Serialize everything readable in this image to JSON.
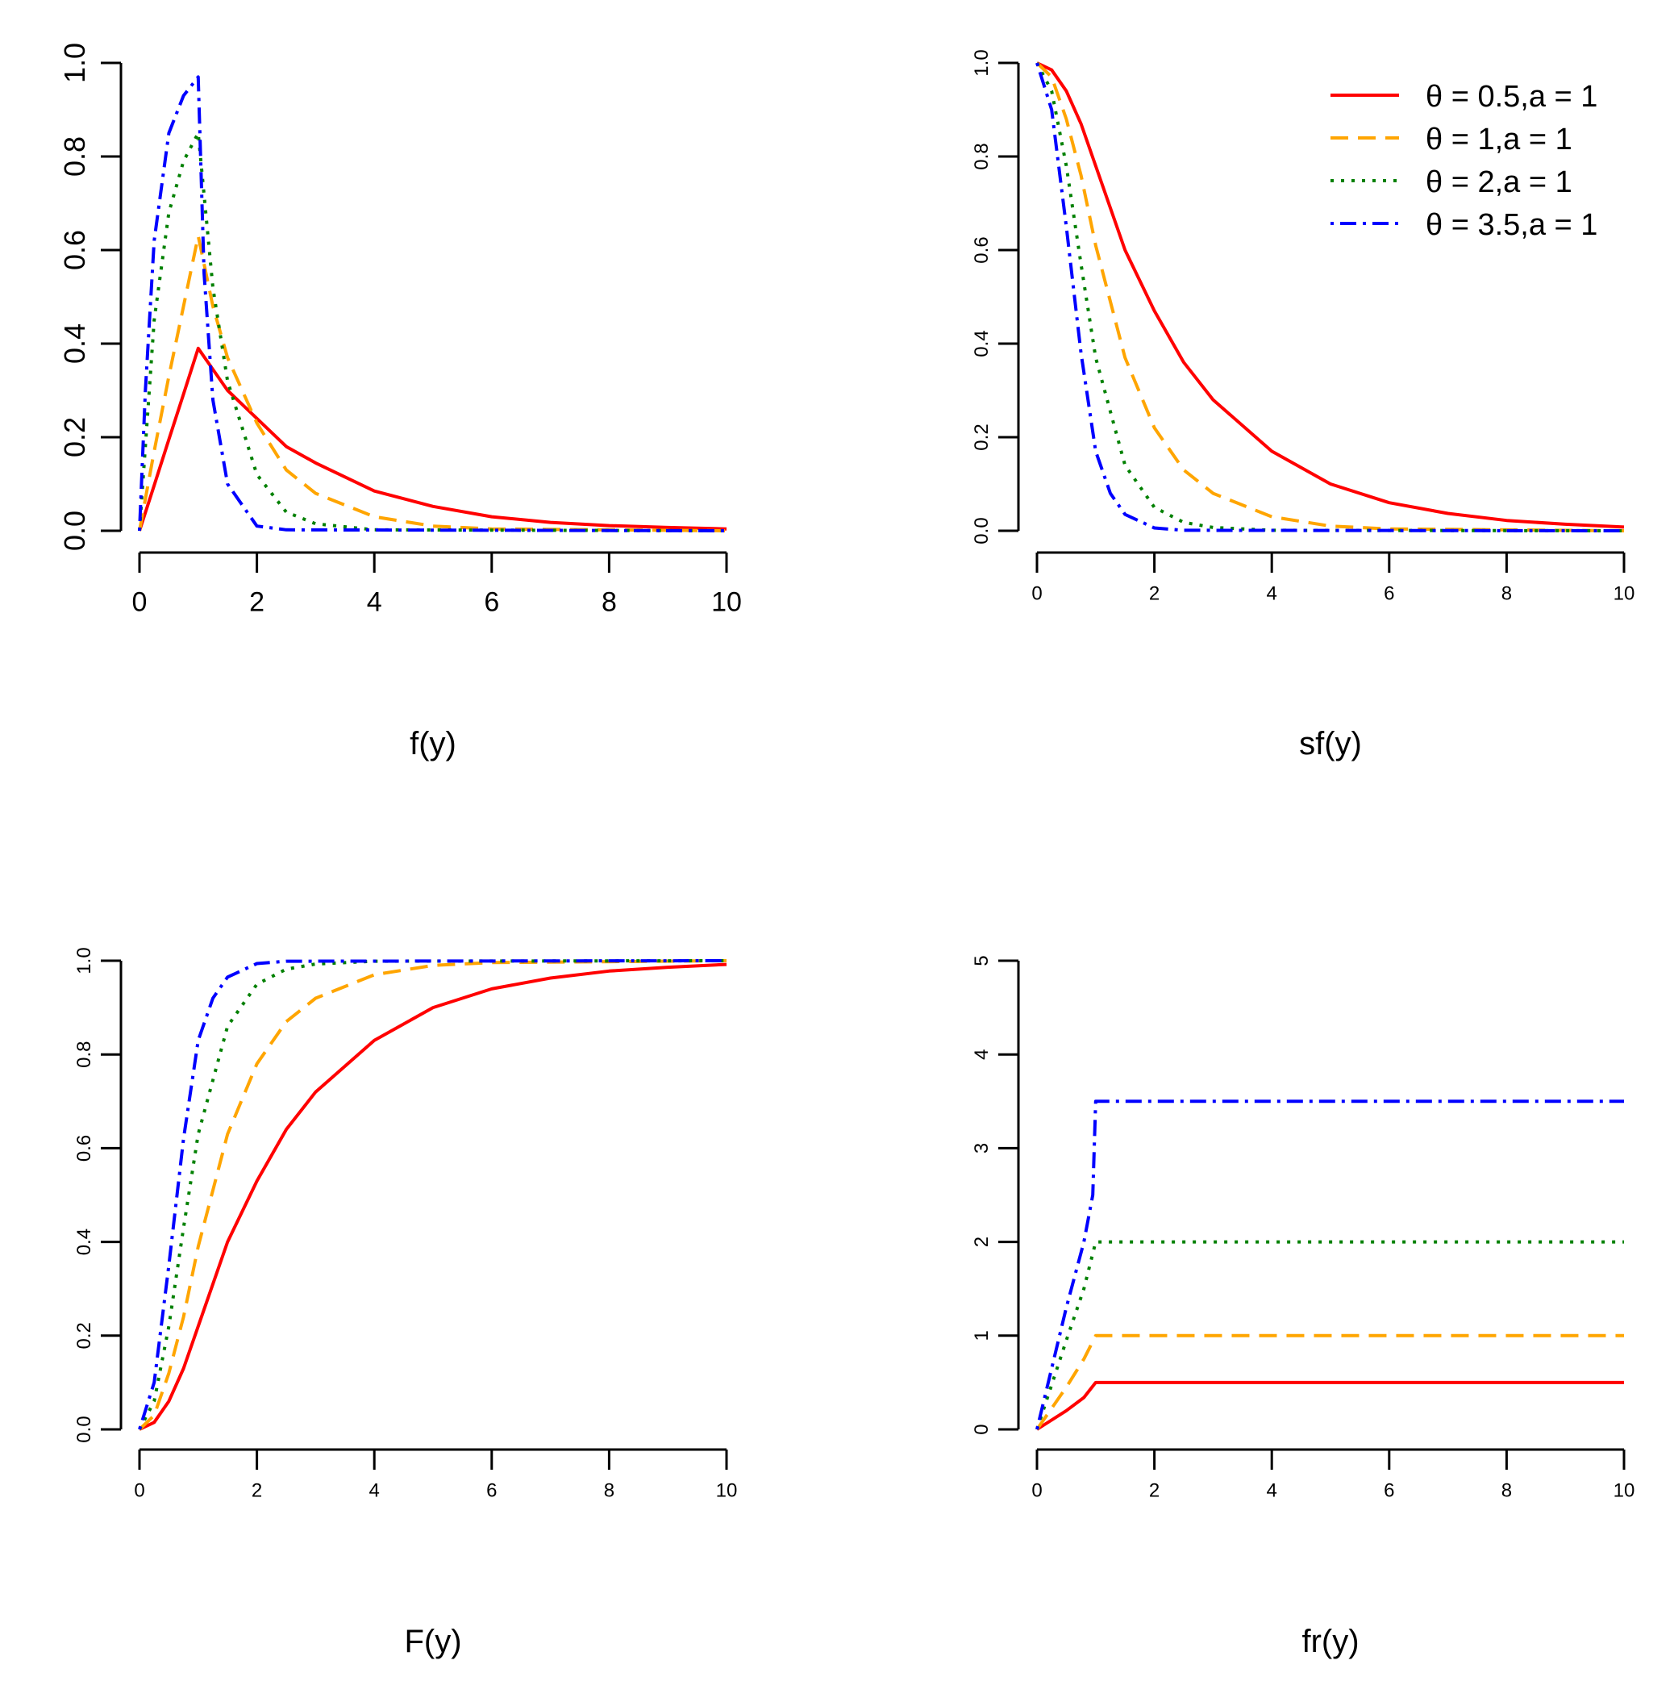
{
  "figure": {
    "theta_symbol": "θ"
  },
  "chart_data": [
    {
      "id": "pdf",
      "type": "line",
      "xlabel": "f(y)",
      "ylabel": "",
      "xlim": [
        0,
        10
      ],
      "ylim": [
        0,
        1
      ],
      "xticks": [
        "0",
        "2",
        "4",
        "6",
        "8",
        "10"
      ],
      "yticks": [
        "0.0",
        "0.2",
        "0.4",
        "0.6",
        "0.8",
        "1.0"
      ],
      "legend": null,
      "series": [
        {
          "name": "θ = 0.5, a = 1",
          "color": "#ff0000",
          "style": "solid",
          "x": [
            0,
            0.25,
            0.5,
            0.75,
            1,
            1.5,
            2,
            2.5,
            3,
            4,
            5,
            6,
            7,
            8,
            9,
            10
          ],
          "y": [
            0,
            0.097,
            0.195,
            0.292,
            0.39,
            0.3,
            0.24,
            0.18,
            0.145,
            0.085,
            0.052,
            0.03,
            0.018,
            0.011,
            0.007,
            0.004
          ]
        },
        {
          "name": "θ = 1, a = 1",
          "color": "#ffa500",
          "style": "dashed",
          "x": [
            0,
            0.25,
            0.5,
            0.75,
            1,
            1.25,
            1.5,
            2,
            2.5,
            3,
            4,
            5,
            6,
            10
          ],
          "y": [
            0,
            0.17,
            0.33,
            0.48,
            0.63,
            0.48,
            0.37,
            0.23,
            0.13,
            0.08,
            0.03,
            0.01,
            0.004,
            0
          ]
        },
        {
          "name": "θ = 2, a = 1",
          "color": "#008000",
          "style": "dotted",
          "x": [
            0,
            0.25,
            0.5,
            0.75,
            1,
            1.25,
            1.5,
            2,
            2.5,
            3,
            4,
            10
          ],
          "y": [
            0,
            0.45,
            0.68,
            0.79,
            0.85,
            0.52,
            0.32,
            0.12,
            0.04,
            0.015,
            0.002,
            0
          ]
        },
        {
          "name": "θ = 3.5, a = 1",
          "color": "#0000ff",
          "style": "dotdash",
          "x": [
            0,
            0.1,
            0.25,
            0.5,
            0.75,
            1,
            1.1,
            1.25,
            1.5,
            2,
            2.5,
            10
          ],
          "y": [
            0,
            0.3,
            0.62,
            0.85,
            0.93,
            0.97,
            0.55,
            0.28,
            0.1,
            0.01,
            0.002,
            0
          ]
        }
      ]
    },
    {
      "id": "sf",
      "type": "line",
      "xlabel": "sf(y)",
      "ylabel": "",
      "xlim": [
        0,
        10
      ],
      "ylim": [
        0,
        1
      ],
      "xticks": [
        "0",
        "2",
        "4",
        "6",
        "8",
        "10"
      ],
      "yticks": [
        "0.0",
        "0.2",
        "0.4",
        "0.6",
        "0.8",
        "1.0"
      ],
      "legend": {
        "position": "top-right",
        "entries": [
          {
            "theta": "0.5",
            "a": "1",
            "color": "#ff0000",
            "style": "solid"
          },
          {
            "theta": "1",
            "a": "1",
            "color": "#ffa500",
            "style": "dashed"
          },
          {
            "theta": "2",
            "a": "1",
            "color": "#008000",
            "style": "dotted"
          },
          {
            "theta": "3.5",
            "a": "1",
            "color": "#0000ff",
            "style": "dotdash"
          }
        ]
      },
      "series": [
        {
          "name": "θ = 0.5, a = 1",
          "color": "#ff0000",
          "style": "solid",
          "x": [
            0,
            0.25,
            0.5,
            0.75,
            1,
            1.5,
            2,
            2.5,
            3,
            4,
            5,
            6,
            7,
            8,
            9,
            10
          ],
          "y": [
            1,
            0.985,
            0.94,
            0.87,
            0.78,
            0.6,
            0.47,
            0.36,
            0.28,
            0.17,
            0.1,
            0.06,
            0.037,
            0.022,
            0.014,
            0.008
          ]
        },
        {
          "name": "θ = 1, a = 1",
          "color": "#ffa500",
          "style": "dashed",
          "x": [
            0,
            0.25,
            0.5,
            0.75,
            1,
            1.5,
            2,
            2.5,
            3,
            4,
            5,
            6,
            10
          ],
          "y": [
            1,
            0.97,
            0.88,
            0.76,
            0.61,
            0.37,
            0.22,
            0.13,
            0.08,
            0.03,
            0.01,
            0.004,
            0
          ]
        },
        {
          "name": "θ = 2, a = 1",
          "color": "#008000",
          "style": "dotted",
          "x": [
            0,
            0.25,
            0.5,
            0.75,
            1,
            1.5,
            2,
            2.5,
            3,
            4,
            10
          ],
          "y": [
            1,
            0.94,
            0.78,
            0.57,
            0.37,
            0.14,
            0.05,
            0.018,
            0.007,
            0.001,
            0
          ]
        },
        {
          "name": "θ = 3.5, a = 1",
          "color": "#0000ff",
          "style": "dotdash",
          "x": [
            0,
            0.25,
            0.5,
            0.75,
            1,
            1.25,
            1.5,
            2,
            2.5,
            10
          ],
          "y": [
            1,
            0.9,
            0.65,
            0.38,
            0.17,
            0.08,
            0.035,
            0.006,
            0.001,
            0
          ]
        }
      ]
    },
    {
      "id": "cdf",
      "type": "line",
      "xlabel": "F(y)",
      "ylabel": "",
      "xlim": [
        0,
        10
      ],
      "ylim": [
        0,
        1
      ],
      "xticks": [
        "0",
        "2",
        "4",
        "6",
        "8",
        "10"
      ],
      "yticks": [
        "0.0",
        "0.2",
        "0.4",
        "0.6",
        "0.8",
        "1.0"
      ],
      "legend": null,
      "series": [
        {
          "name": "θ = 0.5, a = 1",
          "color": "#ff0000",
          "style": "solid",
          "x": [
            0,
            0.25,
            0.5,
            0.75,
            1,
            1.5,
            2,
            2.5,
            3,
            4,
            5,
            6,
            7,
            8,
            9,
            10
          ],
          "y": [
            0,
            0.015,
            0.06,
            0.13,
            0.22,
            0.4,
            0.53,
            0.64,
            0.72,
            0.83,
            0.9,
            0.94,
            0.963,
            0.978,
            0.986,
            0.992
          ]
        },
        {
          "name": "θ = 1, a = 1",
          "color": "#ffa500",
          "style": "dashed",
          "x": [
            0,
            0.25,
            0.5,
            0.75,
            1,
            1.5,
            2,
            2.5,
            3,
            4,
            5,
            6,
            10
          ],
          "y": [
            0,
            0.03,
            0.12,
            0.24,
            0.39,
            0.63,
            0.78,
            0.87,
            0.92,
            0.97,
            0.99,
            0.996,
            1
          ]
        },
        {
          "name": "θ = 2, a = 1",
          "color": "#008000",
          "style": "dotted",
          "x": [
            0,
            0.25,
            0.5,
            0.75,
            1,
            1.5,
            2,
            2.5,
            3,
            4,
            10
          ],
          "y": [
            0,
            0.06,
            0.22,
            0.43,
            0.63,
            0.86,
            0.95,
            0.982,
            0.993,
            0.999,
            1
          ]
        },
        {
          "name": "θ = 3.5, a = 1",
          "color": "#0000ff",
          "style": "dotdash",
          "x": [
            0,
            0.25,
            0.5,
            0.75,
            1,
            1.25,
            1.5,
            2,
            2.5,
            10
          ],
          "y": [
            0,
            0.1,
            0.35,
            0.62,
            0.83,
            0.92,
            0.965,
            0.994,
            0.999,
            1
          ]
        }
      ]
    },
    {
      "id": "hazard",
      "type": "line",
      "xlabel": "fr(y)",
      "ylabel": "",
      "xlim": [
        0,
        10
      ],
      "ylim": [
        0,
        5
      ],
      "xticks": [
        "0",
        "2",
        "4",
        "6",
        "8",
        "10"
      ],
      "yticks": [
        "0",
        "1",
        "2",
        "3",
        "4",
        "5"
      ],
      "legend": null,
      "series": [
        {
          "name": "θ = 0.5, a = 1",
          "color": "#ff0000",
          "style": "solid",
          "x": [
            0,
            0.5,
            0.8,
            1,
            10
          ],
          "y": [
            0,
            0.2,
            0.34,
            0.5,
            0.5
          ]
        },
        {
          "name": "θ = 1, a = 1",
          "color": "#ffa500",
          "style": "dashed",
          "x": [
            0,
            0.5,
            0.8,
            1,
            10
          ],
          "y": [
            0,
            0.45,
            0.75,
            1,
            1
          ]
        },
        {
          "name": "θ = 2, a = 1",
          "color": "#008000",
          "style": "dotted",
          "x": [
            0,
            0.5,
            0.8,
            1,
            10
          ],
          "y": [
            0,
            0.95,
            1.5,
            2,
            2
          ]
        },
        {
          "name": "θ = 3.5, a = 1",
          "color": "#0000ff",
          "style": "dotdash",
          "x": [
            0,
            0.5,
            0.8,
            0.95,
            1,
            10
          ],
          "y": [
            0,
            1.3,
            2.0,
            2.5,
            3.5,
            3.5
          ]
        }
      ]
    }
  ]
}
